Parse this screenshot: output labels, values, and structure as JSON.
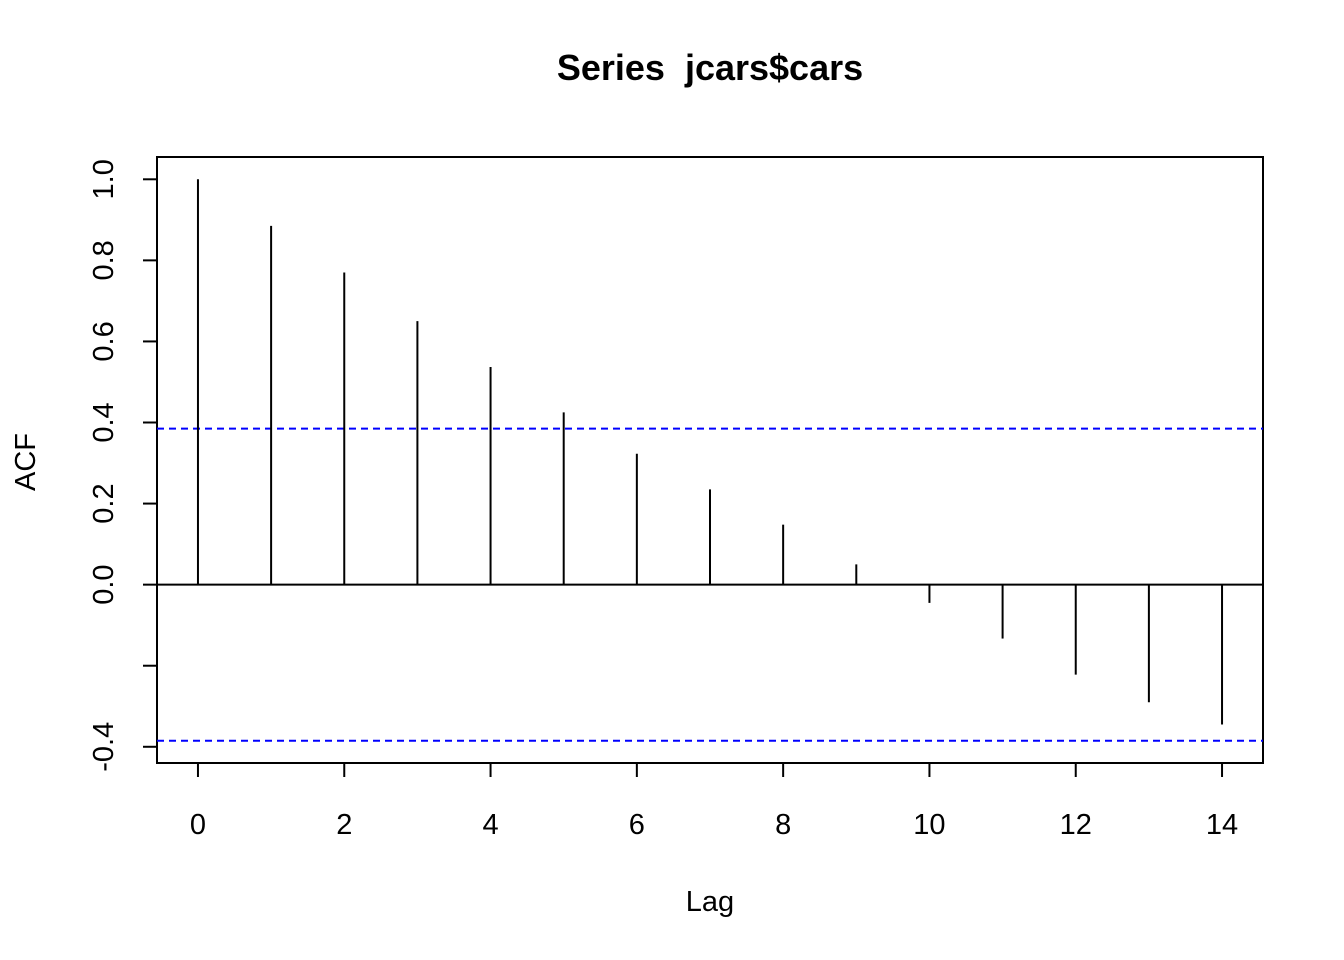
{
  "chart_data": {
    "type": "bar",
    "subtype": "acf-spikes",
    "title": "Series  jcars$cars",
    "xlabel": "Lag",
    "ylabel": "ACF",
    "x": [
      0,
      1,
      2,
      3,
      4,
      5,
      6,
      7,
      8,
      9,
      10,
      11,
      12,
      13,
      14
    ],
    "values": [
      1.0,
      0.885,
      0.77,
      0.65,
      0.537,
      0.425,
      0.323,
      0.235,
      0.148,
      0.05,
      -0.045,
      -0.133,
      -0.222,
      -0.29,
      -0.345
    ],
    "confidence_bound": 0.385,
    "xlim": [
      -0.56,
      14.56
    ],
    "ylim": [
      -0.44,
      1.055
    ],
    "x_ticks": [
      0,
      2,
      4,
      6,
      8,
      10,
      12,
      14
    ],
    "x_tick_labels": [
      "0",
      "2",
      "4",
      "6",
      "8",
      "10",
      "12",
      "14"
    ],
    "y_ticks": [
      -0.4,
      -0.2,
      0.0,
      0.2,
      0.4,
      0.6,
      0.8,
      1.0
    ],
    "y_tick_labels": [
      "-0.4",
      "",
      "0.0",
      "0.2",
      "0.4",
      "0.6",
      "0.8",
      "1.0"
    ],
    "grid": false,
    "colors": {
      "spikes": "#000000",
      "confidence_lines": "#0000ff",
      "zero_line": "#000000"
    }
  }
}
